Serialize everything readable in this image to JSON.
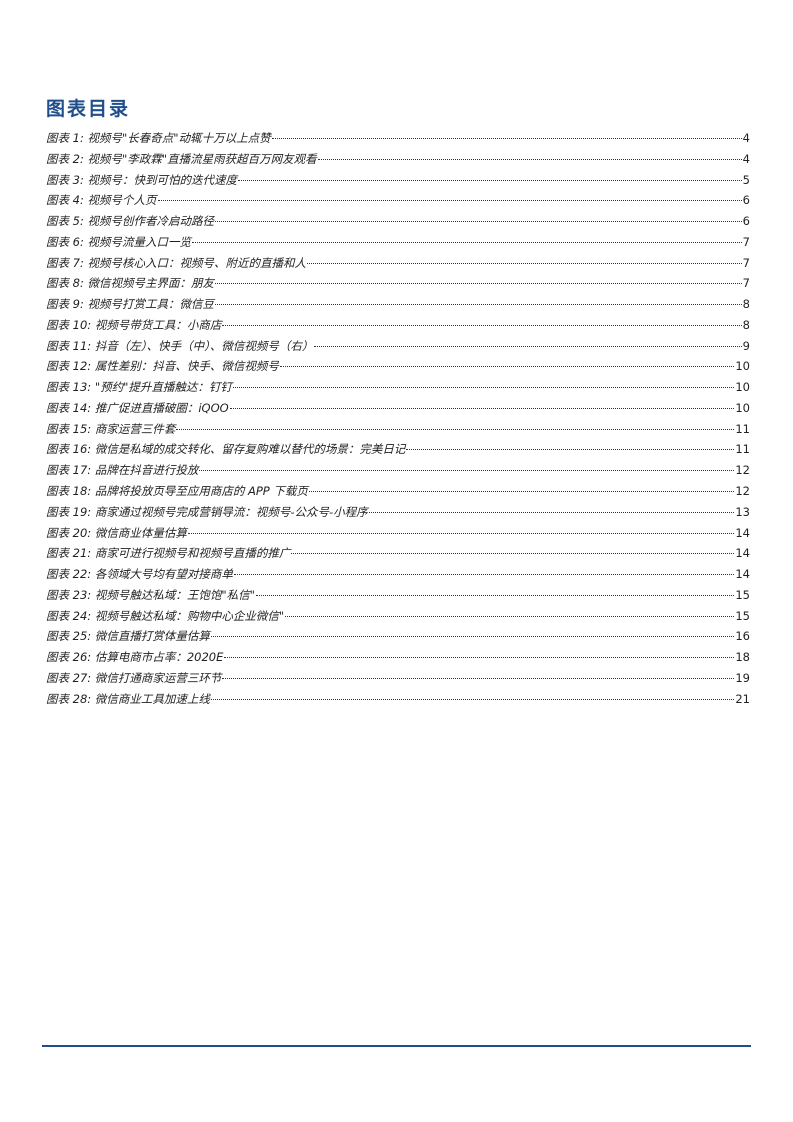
{
  "title": "图表目录",
  "entries": [
    {
      "label": "图表 1:  视频号\"长春奇点\"动辄十万以上点赞",
      "page": "4"
    },
    {
      "label": "图表 2:  视频号\"李政霖\"直播流星雨获超百万网友观看",
      "page": "4"
    },
    {
      "label": "图表 3:  视频号：快到可怕的迭代速度",
      "page": "5"
    },
    {
      "label": "图表 4:  视频号个人页",
      "page": "6"
    },
    {
      "label": "图表 5:  视频号创作者冷启动路径",
      "page": "6"
    },
    {
      "label": "图表 6:  视频号流量入口一览",
      "page": "7"
    },
    {
      "label": "图表 7:  视频号核心入口：视频号、附近的直播和人",
      "page": "7"
    },
    {
      "label": "图表 8:  微信视频号主界面：朋友",
      "page": "7"
    },
    {
      "label": "图表 9:  视频号打赏工具：微信豆",
      "page": "8"
    },
    {
      "label": "图表 10:  视频号带货工具：小商店",
      "page": "8"
    },
    {
      "label": "图表 11:  抖音（左）、快手（中）、微信视频号（右）",
      "page": "9"
    },
    {
      "label": "图表 12:  属性差别：抖音、快手、微信视频号",
      "page": "10"
    },
    {
      "label": "图表 13:  \"预约\"提升直播触达：钉钉",
      "page": "10"
    },
    {
      "label": "图表 14:  推广促进直播破圈：iQOO",
      "page": "10"
    },
    {
      "label": "图表 15:  商家运营三件套",
      "page": "11"
    },
    {
      "label": "图表 16:  微信是私域的成交转化、留存复购难以替代的场景：完美日记",
      "page": "11"
    },
    {
      "label": "图表 17:  品牌在抖音进行投放",
      "page": "12"
    },
    {
      "label": "图表 18:  品牌将投放页导至应用商店的 APP 下载页",
      "page": "12"
    },
    {
      "label": "图表 19:  商家通过视频号完成营销导流：视频号-公众号-小程序",
      "page": "13"
    },
    {
      "label": "图表 20:  微信商业体量估算",
      "page": "14"
    },
    {
      "label": "图表 21:  商家可进行视频号和视频号直播的推广",
      "page": "14"
    },
    {
      "label": "图表 22:  各领域大号均有望对接商单",
      "page": "14"
    },
    {
      "label": "图表 23:  视频号触达私域：王饱饱\"私信\"",
      "page": "15"
    },
    {
      "label": "图表 24:  视频号触达私域：购物中心企业微信\"",
      "page": "15"
    },
    {
      "label": "图表 25:  微信直播打赏体量估算",
      "page": "16"
    },
    {
      "label": "图表 26:  估算电商市占率：2020E",
      "page": "18"
    },
    {
      "label": "图表 27:  微信打通商家运营三环节",
      "page": "19"
    },
    {
      "label": "图表 28:  微信商业工具加速上线",
      "page": "21"
    }
  ],
  "colors": {
    "accent": "#1f4e8c"
  }
}
